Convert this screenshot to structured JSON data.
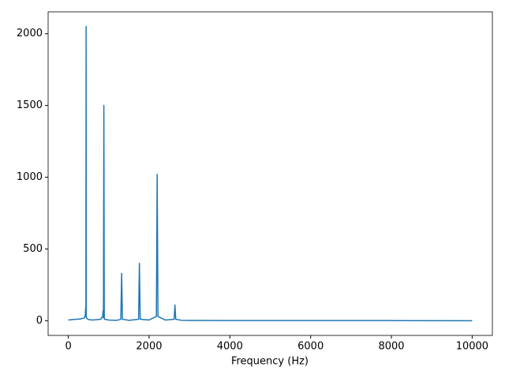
{
  "chart_data": {
    "type": "line",
    "x_label": "Frequency (Hz)",
    "x": [
      0,
      100,
      200,
      300,
      400,
      420,
      430,
      435,
      440,
      445,
      450,
      460,
      500,
      600,
      800,
      850,
      860,
      870,
      880,
      890,
      900,
      1000,
      1200,
      1300,
      1320,
      1340,
      1500,
      1740,
      1760,
      1780,
      2000,
      2180,
      2200,
      2220,
      2400,
      2620,
      2640,
      2660,
      2800,
      3000,
      4000,
      6000,
      8000,
      10000
    ],
    "series": [
      {
        "color": "#1f77b4",
        "values": [
          5,
          8,
          10,
          12,
          20,
          40,
          90,
          30,
          2050,
          30,
          20,
          15,
          8,
          5,
          10,
          30,
          70,
          20,
          1500,
          20,
          10,
          5,
          3,
          10,
          330,
          10,
          3,
          10,
          400,
          10,
          5,
          30,
          1020,
          30,
          5,
          10,
          110,
          10,
          3,
          2,
          1,
          1,
          1,
          0
        ]
      }
    ],
    "xlim": [
      -500,
      10500
    ],
    "ylim": [
      -102.5,
      2152.5
    ],
    "xticks": [
      0,
      2000,
      4000,
      6000,
      8000,
      10000
    ],
    "yticks": [
      0,
      500,
      1000,
      1500,
      2000
    ]
  }
}
